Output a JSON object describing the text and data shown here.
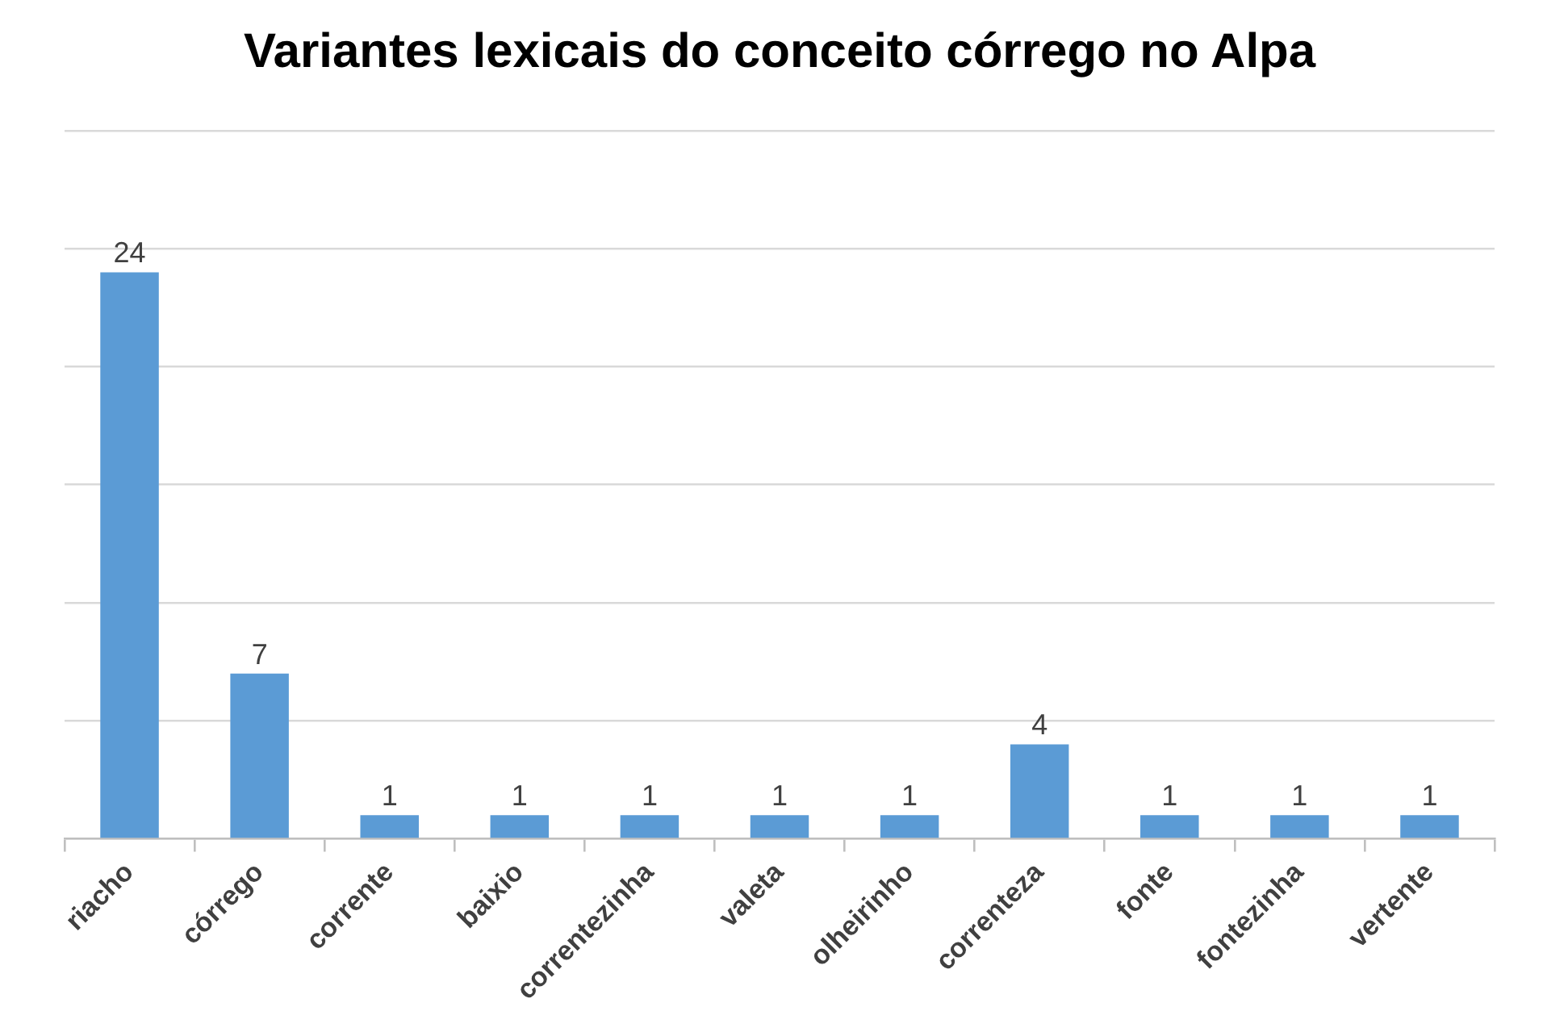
{
  "chart_data": {
    "type": "bar",
    "title": "Variantes lexicais do conceito córrego no Alpa",
    "categories": [
      "riacho",
      "córrego",
      "corrente",
      "baixio",
      "correntezinha",
      "valeta",
      "olheirinho",
      "correnteza",
      "fonte",
      "fontezinha",
      "vertente"
    ],
    "values": [
      24,
      7,
      1,
      1,
      1,
      1,
      1,
      4,
      1,
      1,
      1
    ],
    "color": "#5b9bd5",
    "ylim": [
      0,
      30
    ],
    "yticks": [
      0,
      5,
      10,
      15,
      20,
      25,
      30
    ],
    "grid": "y",
    "tick_labels": "x",
    "data_labels": true,
    "legend": false
  }
}
